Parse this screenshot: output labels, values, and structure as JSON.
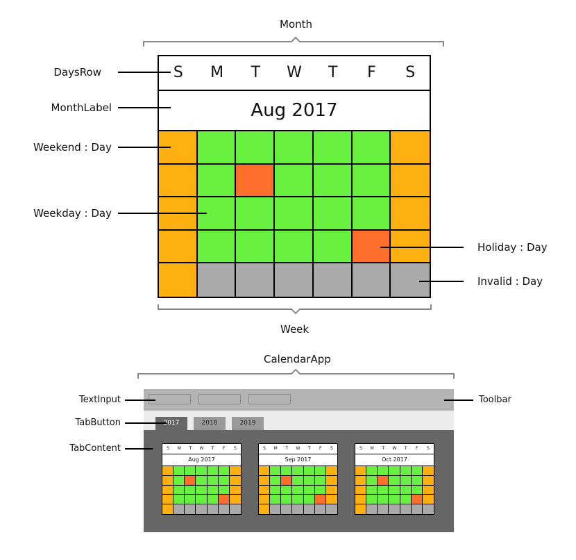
{
  "colors": {
    "weekend": "#fcb111",
    "weekday": "#68f040",
    "holiday": "#ff6f2c",
    "invalid": "#aaaaaa",
    "toolbar": "#b3b3b3",
    "tab_bar": "#ececec",
    "tab_active": "#666666",
    "tab_inactive": "#999999",
    "tab_content": "#666666"
  },
  "month_diagram": {
    "top_label": "Month",
    "bottom_label": "Week",
    "days_row": [
      "S",
      "M",
      "T",
      "W",
      "T",
      "F",
      "S"
    ],
    "month_label": "Aug 2017",
    "grid": [
      [
        "weekend",
        "weekday",
        "weekday",
        "weekday",
        "weekday",
        "weekday",
        "weekend"
      ],
      [
        "weekend",
        "weekday",
        "holiday",
        "weekday",
        "weekday",
        "weekday",
        "weekend"
      ],
      [
        "weekend",
        "weekday",
        "weekday",
        "weekday",
        "weekday",
        "weekday",
        "weekend"
      ],
      [
        "weekend",
        "weekday",
        "weekday",
        "weekday",
        "weekday",
        "holiday",
        "weekend"
      ],
      [
        "weekend",
        "invalid",
        "invalid",
        "invalid",
        "invalid",
        "invalid",
        "invalid"
      ]
    ],
    "callouts": {
      "days_row": "DaysRow",
      "month_label": "MonthLabel",
      "weekend_day": "Weekend : Day",
      "weekday_day": "Weekday : Day",
      "holiday_day": "Holiday : Day",
      "invalid_day": "Invalid : Day"
    }
  },
  "app_diagram": {
    "top_label": "CalendarApp",
    "callouts": {
      "text_input": "TextInput",
      "tab_button": "TabButton",
      "tab_content": "TabContent",
      "toolbar": "Toolbar"
    },
    "tabs": [
      {
        "label": "2017",
        "active": true
      },
      {
        "label": "2018",
        "active": false
      },
      {
        "label": "2019",
        "active": false
      }
    ],
    "months": [
      "Aug 2017",
      "Sep 2017",
      "Oct 2017"
    ]
  }
}
